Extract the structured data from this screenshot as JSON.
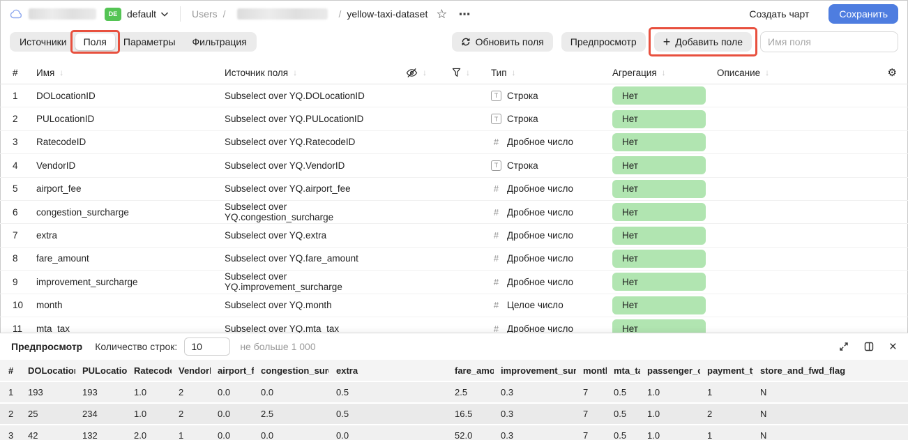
{
  "colors": {
    "save_button": "#4e7de0",
    "env_badge": "#54c454",
    "aggregation_badge": "#b1e5b1",
    "annotation": "#e8503e"
  },
  "icons": {
    "sort_arrow": "↓",
    "gear": "⚙",
    "star": "☆",
    "more": "⋯",
    "close": "×",
    "plus": "+",
    "type_string": "T",
    "type_number": "#"
  },
  "topbar": {
    "env_badge": "DE",
    "env_name": "default",
    "breadcrumb_root": "Users",
    "breadcrumb_sep": "/",
    "dataset_name": "yellow-taxi-dataset",
    "create_chart": "Создать чарт",
    "save": "Сохранить"
  },
  "toolbar": {
    "tabs": [
      {
        "id": "sources",
        "label": "Источники",
        "active": false,
        "annotated": false
      },
      {
        "id": "fields",
        "label": "Поля",
        "active": true,
        "annotated": true
      },
      {
        "id": "parameters",
        "label": "Параметры",
        "active": false,
        "annotated": false
      },
      {
        "id": "filtering",
        "label": "Фильтрация",
        "active": false,
        "annotated": false
      }
    ],
    "refresh_fields": "Обновить поля",
    "preview": "Предпросмотр",
    "add_field": "Добавить поле",
    "field_name_placeholder": "Имя поля"
  },
  "fields_table": {
    "headers": {
      "num": "#",
      "name": "Имя",
      "source": "Источник поля",
      "type": "Тип",
      "aggregation": "Агрегация",
      "description": "Описание"
    },
    "type_labels": {
      "string": "Строка",
      "float": "Дробное число",
      "integer": "Целое число"
    },
    "rows": [
      {
        "num": "1",
        "name": "DOLocationID",
        "source": "Subselect over YQ.DOLocationID",
        "type": "string",
        "aggregation": "Нет"
      },
      {
        "num": "2",
        "name": "PULocationID",
        "source": "Subselect over YQ.PULocationID",
        "type": "string",
        "aggregation": "Нет"
      },
      {
        "num": "3",
        "name": "RatecodeID",
        "source": "Subselect over YQ.RatecodeID",
        "type": "float",
        "aggregation": "Нет"
      },
      {
        "num": "4",
        "name": "VendorID",
        "source": "Subselect over YQ.VendorID",
        "type": "string",
        "aggregation": "Нет"
      },
      {
        "num": "5",
        "name": "airport_fee",
        "source": "Subselect over YQ.airport_fee",
        "type": "float",
        "aggregation": "Нет"
      },
      {
        "num": "6",
        "name": "congestion_surcharge",
        "source": "Subselect over YQ.congestion_surcharge",
        "type": "float",
        "aggregation": "Нет"
      },
      {
        "num": "7",
        "name": "extra",
        "source": "Subselect over YQ.extra",
        "type": "float",
        "aggregation": "Нет"
      },
      {
        "num": "8",
        "name": "fare_amount",
        "source": "Subselect over YQ.fare_amount",
        "type": "float",
        "aggregation": "Нет"
      },
      {
        "num": "9",
        "name": "improvement_surcharge",
        "source": "Subselect over YQ.improvement_surcharge",
        "type": "float",
        "aggregation": "Нет"
      },
      {
        "num": "10",
        "name": "month",
        "source": "Subselect over YQ.month",
        "type": "integer",
        "aggregation": "Нет"
      },
      {
        "num": "11",
        "name": "mta_tax",
        "source": "Subselect over YQ.mta_tax",
        "type": "float",
        "aggregation": "Нет"
      }
    ]
  },
  "preview": {
    "title": "Предпросмотр",
    "row_count_label": "Количество строк:",
    "row_count_value": "10",
    "row_count_hint": "не больше 1 000",
    "table": {
      "columns": [
        "#",
        "DOLocationID",
        "PULocationID",
        "RatecodeID",
        "VendorID",
        "airport_fee",
        "congestion_surcharge",
        "extra",
        "fare_amount",
        "improvement_surcharge",
        "month",
        "mta_tax",
        "passenger_count",
        "payment_type",
        "store_and_fwd_flag"
      ],
      "rows": [
        [
          "1",
          "193",
          "193",
          "1.0",
          "2",
          "0.0",
          "0.0",
          "0.5",
          "2.5",
          "0.3",
          "7",
          "0.5",
          "1.0",
          "1",
          "N"
        ],
        [
          "2",
          "25",
          "234",
          "1.0",
          "2",
          "0.0",
          "2.5",
          "0.5",
          "16.5",
          "0.3",
          "7",
          "0.5",
          "1.0",
          "2",
          "N"
        ],
        [
          "3",
          "42",
          "132",
          "2.0",
          "1",
          "0.0",
          "0.0",
          "0.0",
          "52.0",
          "0.3",
          "7",
          "0.5",
          "1.0",
          "1",
          "N"
        ]
      ]
    }
  }
}
